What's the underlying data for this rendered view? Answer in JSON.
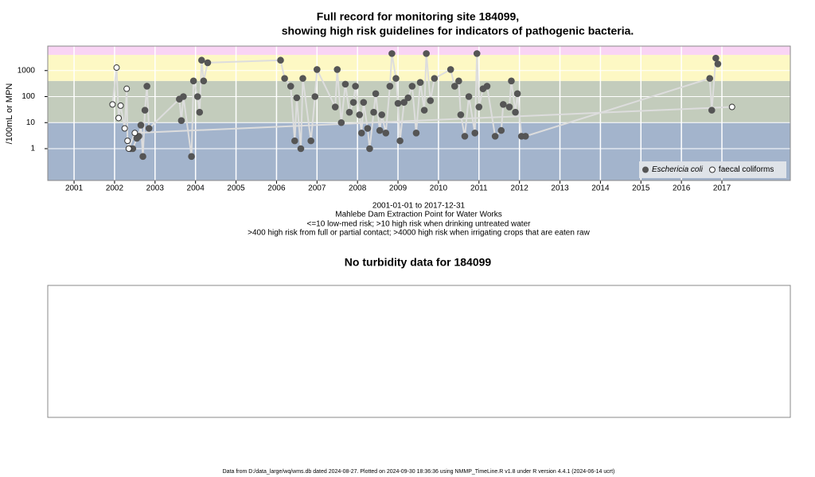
{
  "chart_data": [
    {
      "type": "scatter",
      "title": [
        "Full record for monitoring site 184099,",
        "showing high risk guidelines for indicators of pathogenic bacteria."
      ],
      "x_label": [
        "2001-01-01 to 2017-12-31",
        "Mahlebe Dam Extraction Point for Water Works",
        "<=10 low-med risk; >10 high risk when drinking untreated water",
        ">400 high risk from full or partial contact; >4000 high risk when irrigating crops that are eaten raw"
      ],
      "y_label": "/100mL or MPN",
      "xlim": [
        2000.35,
        2018.69
      ],
      "xticks": [
        2001,
        2002,
        2003,
        2004,
        2005,
        2006,
        2007,
        2008,
        2009,
        2010,
        2011,
        2012,
        2013,
        2014,
        2015,
        2016,
        2017
      ],
      "ylim": [
        0.06,
        8700
      ],
      "yticks": [
        1,
        10,
        100,
        1000
      ],
      "log_y": true,
      "grid": true,
      "legend": "bottom right",
      "thresholds": [
        10,
        400,
        4000
      ],
      "band_colors": [
        "#a3b4cc",
        "#c3ccbc",
        "#fdf8c4",
        "#f9d4f4"
      ],
      "series": [
        {
          "name": "Eschericia coli",
          "color": "#555555",
          "line_color": "#dddddd",
          "filled": true,
          "x": [
            2002.4,
            2002.45,
            2002.55,
            2002.6,
            2002.65,
            2002.7,
            2002.75,
            2002.8,
            2002.85,
            2003.6,
            2003.65,
            2003.7,
            2003.9,
            2003.95,
            2004.05,
            2004.1,
            2004.15,
            2004.2,
            2004.3,
            2006.1,
            2006.2,
            2006.35,
            2006.45,
            2006.5,
            2006.6,
            2006.65,
            2006.85,
            2006.95,
            2007.0,
            2007.45,
            2007.5,
            2007.6,
            2007.7,
            2007.8,
            2007.9,
            2007.95,
            2008.05,
            2008.1,
            2008.15,
            2008.25,
            2008.3,
            2008.4,
            2008.45,
            2008.55,
            2008.6,
            2008.7,
            2008.8,
            2008.85,
            2008.95,
            2009.0,
            2009.05,
            2009.15,
            2009.25,
            2009.35,
            2009.45,
            2009.55,
            2009.65,
            2009.7,
            2009.8,
            2009.9,
            2010.3,
            2010.4,
            2010.5,
            2010.55,
            2010.65,
            2010.75,
            2010.9,
            2010.95,
            2011.0,
            2011.1,
            2011.2,
            2011.4,
            2011.55,
            2011.6,
            2011.75,
            2011.8,
            2011.9,
            2011.95,
            2012.05,
            2012.15,
            2016.7,
            2016.75,
            2016.85,
            2016.9
          ],
          "values": [
            1,
            1,
            2.5,
            3,
            8,
            0.5,
            30,
            250,
            6,
            80,
            12,
            100,
            0.5,
            400,
            100,
            25,
            2500,
            400,
            2000,
            2500,
            500,
            250,
            2,
            90,
            1,
            500,
            2,
            100,
            1100,
            40,
            1100,
            10,
            300,
            25,
            60,
            250,
            20,
            4,
            60,
            6,
            1,
            25,
            130,
            5,
            20,
            4,
            250,
            4500,
            500,
            55,
            2,
            60,
            90,
            250,
            4,
            350,
            30,
            4500,
            70,
            500,
            1100,
            250,
            400,
            20,
            3,
            100,
            4,
            4500,
            40,
            200,
            250,
            3,
            5,
            50,
            40,
            400,
            25,
            130,
            3,
            3,
            500,
            30,
            3000,
            1800
          ]
        },
        {
          "name": "faecal coliforms",
          "color": "#333333",
          "line_color": "#dddddd",
          "filled": false,
          "x": [
            2001.95,
            2002.05,
            2002.1,
            2002.15,
            2002.25,
            2002.3,
            2002.32,
            2002.35,
            2002.5,
            2017.25
          ],
          "values": [
            50,
            1300,
            15,
            45,
            6,
            200,
            2,
            1,
            4,
            40
          ]
        }
      ]
    },
    {
      "type": "empty",
      "title": "No turbidity data for 184099"
    }
  ],
  "footer": "Data from D:/data_large/wq/wms.db dated 2024-08-27. Plotted on 2024-09-30 18:36:36 using NMMP_TimeLine.R v1.8 under R version 4.4.1 (2024-06-14 ucrt)"
}
